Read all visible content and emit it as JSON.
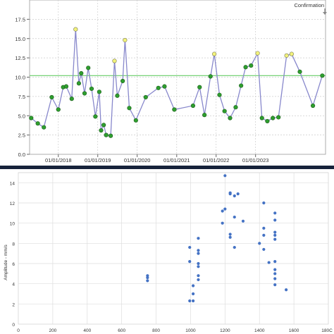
{
  "charts_meta": {
    "divider_color": "#16223a"
  },
  "chart_data": [
    {
      "type": "line",
      "title": "",
      "xlabel": "",
      "ylabel": "",
      "annotation": "Confirmation",
      "ylim": [
        0,
        20
      ],
      "yticks": [
        "0.0",
        "2.5",
        "5.0",
        "7.5",
        "10.0",
        "12.5",
        "15.0",
        "17.5"
      ],
      "xticks": [
        "01/01/2018",
        "01/01/2019",
        "01/01/2020",
        "01/01/2021",
        "01/01/2022",
        "01/01/2023"
      ],
      "reference_line": {
        "value": 10.2,
        "color": "#66cc66"
      },
      "line_color": "#8888cc",
      "marker_colors": {
        "normal": "#2e9e2e",
        "highlight": "#f2f27a"
      },
      "series": [
        {
          "points": [
            {
              "x": "2017-04-25",
              "y": 4.7,
              "highlight": false
            },
            {
              "x": "2017-06-25",
              "y": 4.0,
              "highlight": false
            },
            {
              "x": "2017-08-20",
              "y": 3.5,
              "highlight": false
            },
            {
              "x": "2017-11-01",
              "y": 7.4,
              "highlight": false
            },
            {
              "x": "2018-01-01",
              "y": 5.8,
              "highlight": false
            },
            {
              "x": "2018-02-15",
              "y": 8.7,
              "highlight": false
            },
            {
              "x": "2018-03-15",
              "y": 8.8,
              "highlight": false
            },
            {
              "x": "2018-05-05",
              "y": 7.2,
              "highlight": false
            },
            {
              "x": "2018-06-10",
              "y": 16.2,
              "highlight": true
            },
            {
              "x": "2018-07-10",
              "y": 9.2,
              "highlight": false
            },
            {
              "x": "2018-08-01",
              "y": 10.5,
              "highlight": false
            },
            {
              "x": "2018-09-01",
              "y": 7.9,
              "highlight": false
            },
            {
              "x": "2018-10-05",
              "y": 11.2,
              "highlight": false
            },
            {
              "x": "2018-11-05",
              "y": 8.5,
              "highlight": false
            },
            {
              "x": "2018-12-10",
              "y": 4.9,
              "highlight": false
            },
            {
              "x": "2019-01-15",
              "y": 8.1,
              "highlight": false
            },
            {
              "x": "2019-02-01",
              "y": 3.1,
              "highlight": false
            },
            {
              "x": "2019-02-25",
              "y": 3.8,
              "highlight": false
            },
            {
              "x": "2019-03-20",
              "y": 2.5,
              "highlight": false
            },
            {
              "x": "2019-05-01",
              "y": 2.4,
              "highlight": false
            },
            {
              "x": "2019-06-05",
              "y": 12.1,
              "highlight": true
            },
            {
              "x": "2019-07-01",
              "y": 7.6,
              "highlight": false
            },
            {
              "x": "2019-08-20",
              "y": 9.5,
              "highlight": false
            },
            {
              "x": "2019-09-10",
              "y": 14.8,
              "highlight": true
            },
            {
              "x": "2019-10-20",
              "y": 6.0,
              "highlight": false
            },
            {
              "x": "2019-12-20",
              "y": 4.4,
              "highlight": false
            },
            {
              "x": "2020-03-20",
              "y": 7.4,
              "highlight": false
            },
            {
              "x": "2020-07-15",
              "y": 8.6,
              "highlight": false
            },
            {
              "x": "2020-09-10",
              "y": 8.8,
              "highlight": false
            },
            {
              "x": "2020-12-10",
              "y": 5.8,
              "highlight": false
            },
            {
              "x": "2021-06-01",
              "y": 6.3,
              "highlight": false
            },
            {
              "x": "2021-08-01",
              "y": 8.7,
              "highlight": false
            },
            {
              "x": "2021-09-15",
              "y": 5.1,
              "highlight": false
            },
            {
              "x": "2021-11-10",
              "y": 10.1,
              "highlight": false
            },
            {
              "x": "2021-12-15",
              "y": 13.0,
              "highlight": true
            },
            {
              "x": "2022-02-01",
              "y": 7.7,
              "highlight": false
            },
            {
              "x": "2022-03-20",
              "y": 5.6,
              "highlight": false
            },
            {
              "x": "2022-05-10",
              "y": 4.7,
              "highlight": false
            },
            {
              "x": "2022-07-01",
              "y": 6.1,
              "highlight": false
            },
            {
              "x": "2022-08-20",
              "y": 8.9,
              "highlight": false
            },
            {
              "x": "2022-10-01",
              "y": 11.3,
              "highlight": false
            },
            {
              "x": "2022-11-20",
              "y": 11.5,
              "highlight": false
            },
            {
              "x": "2023-01-20",
              "y": 13.1,
              "highlight": true
            },
            {
              "x": "2023-03-01",
              "y": 4.7,
              "highlight": false
            },
            {
              "x": "2023-04-20",
              "y": 4.3,
              "highlight": false
            },
            {
              "x": "2023-06-10",
              "y": 4.7,
              "highlight": false
            },
            {
              "x": "2023-08-01",
              "y": 4.8,
              "highlight": false
            },
            {
              "x": "2023-10-15",
              "y": 12.8,
              "highlight": true
            },
            {
              "x": "2023-12-01",
              "y": 13.0,
              "highlight": true
            },
            {
              "x": "2024-02-15",
              "y": 10.7,
              "highlight": false
            },
            {
              "x": "2024-06-15",
              "y": 6.3,
              "highlight": false
            },
            {
              "x": "2024-09-10",
              "y": 10.2,
              "highlight": false
            }
          ]
        }
      ],
      "grid": true
    },
    {
      "type": "scatter",
      "title": "",
      "xlabel": "",
      "ylabel": "Amplitude - mm/s",
      "xlim": [
        0,
        1800
      ],
      "ylim": [
        0,
        15
      ],
      "xticks": [
        "0",
        "200",
        "400",
        "600",
        "800",
        "1000",
        "1200",
        "1400",
        "1600",
        "180C"
      ],
      "yticks": [
        "0",
        "2",
        "4",
        "6",
        "8",
        "10",
        "12",
        "14"
      ],
      "marker_color": "#4472c4",
      "grid": true,
      "series": [
        {
          "points": [
            [
              750,
              4.8
            ],
            [
              750,
              4.6
            ],
            [
              750,
              4.3
            ],
            [
              995,
              7.6
            ],
            [
              995,
              6.2
            ],
            [
              995,
              2.3
            ],
            [
              1015,
              3.8
            ],
            [
              1015,
              3.0
            ],
            [
              1015,
              2.3
            ],
            [
              1045,
              8.5
            ],
            [
              1045,
              7.3
            ],
            [
              1045,
              7.0
            ],
            [
              1045,
              6.0
            ],
            [
              1045,
              5.7
            ],
            [
              1045,
              4.8
            ],
            [
              1045,
              4.4
            ],
            [
              1185,
              11.2
            ],
            [
              1185,
              10.0
            ],
            [
              1200,
              14.7
            ],
            [
              1200,
              11.4
            ],
            [
              1230,
              13.0
            ],
            [
              1230,
              12.9
            ],
            [
              1230,
              8.9
            ],
            [
              1230,
              8.6
            ],
            [
              1255,
              12.7
            ],
            [
              1255,
              10.6
            ],
            [
              1255,
              7.6
            ],
            [
              1275,
              12.9
            ],
            [
              1305,
              10.2
            ],
            [
              1400,
              8.0
            ],
            [
              1425,
              12.0
            ],
            [
              1425,
              9.5
            ],
            [
              1425,
              8.8
            ],
            [
              1425,
              7.4
            ],
            [
              1455,
              6.1
            ],
            [
              1490,
              11.0
            ],
            [
              1490,
              10.3
            ],
            [
              1490,
              9.1
            ],
            [
              1490,
              8.8
            ],
            [
              1490,
              8.4
            ],
            [
              1490,
              6.2
            ],
            [
              1490,
              5.4
            ],
            [
              1490,
              5.0
            ],
            [
              1490,
              4.5
            ],
            [
              1490,
              3.9
            ],
            [
              1555,
              3.4
            ]
          ]
        }
      ]
    }
  ]
}
